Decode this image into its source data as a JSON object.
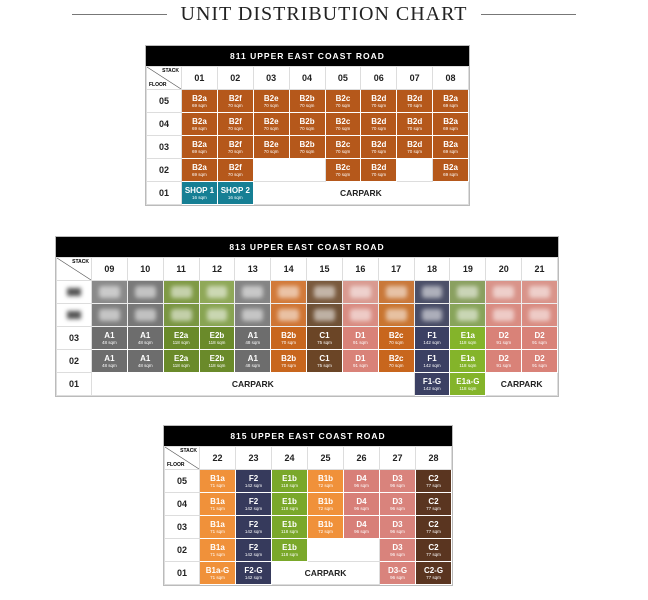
{
  "title": "UNIT DISTRIBUTION CHART",
  "stack_label": "STACK",
  "floor_label": "FLOOR",
  "blocks": [
    {
      "title": "811 UPPER EAST COAST ROAD",
      "stacks": [
        "01",
        "02",
        "03",
        "04",
        "05",
        "06",
        "07",
        "08"
      ],
      "rows": [
        {
          "floor": "05",
          "cells": [
            {
              "unit": "B2a",
              "area": "69 sqm",
              "color": "#b5581b"
            },
            {
              "unit": "B2f",
              "area": "70 sqm",
              "color": "#b5581b"
            },
            {
              "unit": "B2e",
              "area": "70 sqm",
              "color": "#b5581b"
            },
            {
              "unit": "B2b",
              "area": "70 sqm",
              "color": "#b5581b"
            },
            {
              "unit": "B2c",
              "area": "70 sqm",
              "color": "#b5581b"
            },
            {
              "unit": "B2d",
              "area": "70 sqm",
              "color": "#b5581b"
            },
            {
              "unit": "B2d",
              "area": "70 sqm",
              "color": "#b5581b"
            },
            {
              "unit": "B2a",
              "area": "69 sqm",
              "color": "#b5581b"
            }
          ]
        },
        {
          "floor": "04",
          "cells": [
            {
              "unit": "B2a",
              "area": "69 sqm",
              "color": "#b5581b"
            },
            {
              "unit": "B2f",
              "area": "70 sqm",
              "color": "#b5581b"
            },
            {
              "unit": "B2e",
              "area": "70 sqm",
              "color": "#b5581b"
            },
            {
              "unit": "B2b",
              "area": "70 sqm",
              "color": "#b5581b"
            },
            {
              "unit": "B2c",
              "area": "70 sqm",
              "color": "#b5581b"
            },
            {
              "unit": "B2d",
              "area": "70 sqm",
              "color": "#b5581b"
            },
            {
              "unit": "B2d",
              "area": "70 sqm",
              "color": "#b5581b"
            },
            {
              "unit": "B2a",
              "area": "69 sqm",
              "color": "#b5581b"
            }
          ]
        },
        {
          "floor": "03",
          "cells": [
            {
              "unit": "B2a",
              "area": "69 sqm",
              "color": "#b5581b"
            },
            {
              "unit": "B2f",
              "area": "70 sqm",
              "color": "#b5581b"
            },
            {
              "unit": "B2e",
              "area": "70 sqm",
              "color": "#b5581b"
            },
            {
              "unit": "B2b",
              "area": "70 sqm",
              "color": "#b5581b"
            },
            {
              "unit": "B2c",
              "area": "70 sqm",
              "color": "#b5581b"
            },
            {
              "unit": "B2d",
              "area": "70 sqm",
              "color": "#b5581b"
            },
            {
              "unit": "B2d",
              "area": "70 sqm",
              "color": "#b5581b"
            },
            {
              "unit": "B2a",
              "area": "69 sqm",
              "color": "#b5581b"
            }
          ]
        },
        {
          "floor": "02",
          "cells": [
            {
              "unit": "B2a",
              "area": "69 sqm",
              "color": "#b5581b"
            },
            {
              "unit": "B2f",
              "area": "70 sqm",
              "color": "#b5581b"
            },
            {
              "blank": 2
            },
            {
              "unit": "B2c",
              "area": "70 sqm",
              "color": "#b5581b"
            },
            {
              "unit": "B2d",
              "area": "70 sqm",
              "color": "#b5581b"
            },
            {
              "blank": 1
            },
            {
              "unit": "B2a",
              "area": "69 sqm",
              "color": "#b5581b"
            }
          ]
        },
        {
          "floor": "01",
          "cells": [
            {
              "unit": "SHOP 1",
              "area": "16 sqm",
              "color": "#167f94"
            },
            {
              "unit": "SHOP 2",
              "area": "16 sqm",
              "color": "#167f94"
            },
            {
              "label": "CARPARK",
              "span": 6
            }
          ]
        }
      ]
    },
    {
      "title": "813 UPPER EAST COAST ROAD",
      "stacks": [
        "09",
        "10",
        "11",
        "12",
        "13",
        "14",
        "15",
        "16",
        "17",
        "18",
        "19",
        "20",
        "21"
      ],
      "rows": [
        {
          "obscured": true,
          "cells": [
            {
              "color": "#8a8a8a"
            },
            {
              "color": "#7a7a7a"
            },
            {
              "color": "#7f9a45"
            },
            {
              "color": "#8fa858"
            },
            {
              "color": "#858585"
            },
            {
              "color": "#d27a3a"
            },
            {
              "color": "#7a5a3e"
            },
            {
              "color": "#d99a90"
            },
            {
              "color": "#c9783a"
            },
            {
              "color": "#4c5068"
            },
            {
              "color": "#8aa060"
            },
            {
              "color": "#d9948a"
            },
            {
              "color": "#d9948a"
            }
          ]
        },
        {
          "obscured": true,
          "cells": [
            {
              "color": "#7e7e7e"
            },
            {
              "color": "#777777"
            },
            {
              "color": "#7a9642"
            },
            {
              "color": "#88a452"
            },
            {
              "color": "#7f7f7f"
            },
            {
              "color": "#cf7534"
            },
            {
              "color": "#6f5136"
            },
            {
              "color": "#d98c82"
            },
            {
              "color": "#c97530"
            },
            {
              "color": "#484c66"
            },
            {
              "color": "#88a45a"
            },
            {
              "color": "#d98c82"
            },
            {
              "color": "#d98c82"
            }
          ]
        },
        {
          "floor": "03",
          "cells": [
            {
              "unit": "A1",
              "area": "48 sqm",
              "color": "#6d6d6d"
            },
            {
              "unit": "A1",
              "area": "48 sqm",
              "color": "#6d6d6d"
            },
            {
              "unit": "E2a",
              "area": "118 sqm",
              "color": "#6a8a2a"
            },
            {
              "unit": "E2b",
              "area": "118 sqm",
              "color": "#6a8a2a"
            },
            {
              "unit": "A1",
              "area": "48 sqm",
              "color": "#6d6d6d"
            },
            {
              "unit": "B2b",
              "area": "70 sqm",
              "color": "#c8661d"
            },
            {
              "unit": "C1",
              "area": "75 sqm",
              "color": "#6b4526"
            },
            {
              "unit": "D1",
              "area": "91 sqm",
              "color": "#d98278"
            },
            {
              "unit": "B2c",
              "area": "70 sqm",
              "color": "#c8661d"
            },
            {
              "unit": "F1",
              "area": "142 sqm",
              "color": "#3b4063"
            },
            {
              "unit": "E1a",
              "area": "118 sqm",
              "color": "#84b42a"
            },
            {
              "unit": "D2",
              "area": "91 sqm",
              "color": "#d98278"
            },
            {
              "unit": "D2",
              "area": "91 sqm",
              "color": "#d98278"
            }
          ]
        },
        {
          "floor": "02",
          "cells": [
            {
              "unit": "A1",
              "area": "48 sqm",
              "color": "#6d6d6d"
            },
            {
              "unit": "A1",
              "area": "48 sqm",
              "color": "#6d6d6d"
            },
            {
              "unit": "E2a",
              "area": "118 sqm",
              "color": "#6a8a2a"
            },
            {
              "unit": "E2b",
              "area": "118 sqm",
              "color": "#6a8a2a"
            },
            {
              "unit": "A1",
              "area": "48 sqm",
              "color": "#6d6d6d"
            },
            {
              "unit": "B2b",
              "area": "70 sqm",
              "color": "#c8661d"
            },
            {
              "unit": "C1",
              "area": "75 sqm",
              "color": "#6b4526"
            },
            {
              "unit": "D1",
              "area": "91 sqm",
              "color": "#d98278"
            },
            {
              "unit": "B2c",
              "area": "70 sqm",
              "color": "#c8661d"
            },
            {
              "unit": "F1",
              "area": "142 sqm",
              "color": "#3b4063"
            },
            {
              "unit": "E1a",
              "area": "118 sqm",
              "color": "#84b42a"
            },
            {
              "unit": "D2",
              "area": "91 sqm",
              "color": "#d98278"
            },
            {
              "unit": "D2",
              "area": "91 sqm",
              "color": "#d98278"
            }
          ]
        },
        {
          "floor": "01",
          "cells": [
            {
              "label": "CARPARK",
              "span": 9
            },
            {
              "unit": "F1-G",
              "area": "142 sqm",
              "color": "#3b4063"
            },
            {
              "unit": "E1a-G",
              "area": "118 sqm",
              "color": "#84b42a"
            },
            {
              "label": "CARPARK",
              "span": 2
            }
          ]
        }
      ]
    },
    {
      "title": "815 UPPER EAST COAST ROAD",
      "stacks": [
        "22",
        "23",
        "24",
        "25",
        "26",
        "27",
        "28"
      ],
      "rows": [
        {
          "floor": "05",
          "cells": [
            {
              "unit": "B1a",
              "area": "71 sqm",
              "color": "#f0913a"
            },
            {
              "unit": "F2",
              "area": "142 sqm",
              "color": "#363a5c"
            },
            {
              "unit": "E1b",
              "area": "118 sqm",
              "color": "#7aa82a"
            },
            {
              "unit": "B1b",
              "area": "72 sqm",
              "color": "#f0913a"
            },
            {
              "unit": "D4",
              "area": "96 sqm",
              "color": "#d87f78"
            },
            {
              "unit": "D3",
              "area": "96 sqm",
              "color": "#d9837c"
            },
            {
              "unit": "C2",
              "area": "77 sqm",
              "color": "#5a3520"
            }
          ]
        },
        {
          "floor": "04",
          "cells": [
            {
              "unit": "B1a",
              "area": "71 sqm",
              "color": "#f0913a"
            },
            {
              "unit": "F2",
              "area": "142 sqm",
              "color": "#363a5c"
            },
            {
              "unit": "E1b",
              "area": "118 sqm",
              "color": "#7aa82a"
            },
            {
              "unit": "B1b",
              "area": "72 sqm",
              "color": "#f0913a"
            },
            {
              "unit": "D4",
              "area": "96 sqm",
              "color": "#d87f78"
            },
            {
              "unit": "D3",
              "area": "96 sqm",
              "color": "#d9837c"
            },
            {
              "unit": "C2",
              "area": "77 sqm",
              "color": "#5a3520"
            }
          ]
        },
        {
          "floor": "03",
          "cells": [
            {
              "unit": "B1a",
              "area": "71 sqm",
              "color": "#f0913a"
            },
            {
              "unit": "F2",
              "area": "142 sqm",
              "color": "#363a5c"
            },
            {
              "unit": "E1b",
              "area": "118 sqm",
              "color": "#7aa82a"
            },
            {
              "unit": "B1b",
              "area": "72 sqm",
              "color": "#f0913a"
            },
            {
              "unit": "D4",
              "area": "96 sqm",
              "color": "#d87f78"
            },
            {
              "unit": "D3",
              "area": "96 sqm",
              "color": "#d9837c"
            },
            {
              "unit": "C2",
              "area": "77 sqm",
              "color": "#5a3520"
            }
          ]
        },
        {
          "floor": "02",
          "cells": [
            {
              "unit": "B1a",
              "area": "71 sqm",
              "color": "#f0913a"
            },
            {
              "unit": "F2",
              "area": "142 sqm",
              "color": "#363a5c"
            },
            {
              "unit": "E1b",
              "area": "118 sqm",
              "color": "#7aa82a"
            },
            {
              "blank": 2
            },
            {
              "unit": "D3",
              "area": "96 sqm",
              "color": "#d9837c"
            },
            {
              "unit": "C2",
              "area": "77 sqm",
              "color": "#5a3520"
            }
          ]
        },
        {
          "floor": "01",
          "cells": [
            {
              "unit": "B1a-G",
              "area": "71 sqm",
              "color": "#f0913a"
            },
            {
              "unit": "F2-G",
              "area": "142 sqm",
              "color": "#363a5c"
            },
            {
              "label": "CARPARK",
              "span": 3
            },
            {
              "unit": "D3-G",
              "area": "96 sqm",
              "color": "#d9837c"
            },
            {
              "unit": "C2-G",
              "area": "77 sqm",
              "color": "#5a3520"
            }
          ]
        }
      ]
    }
  ]
}
